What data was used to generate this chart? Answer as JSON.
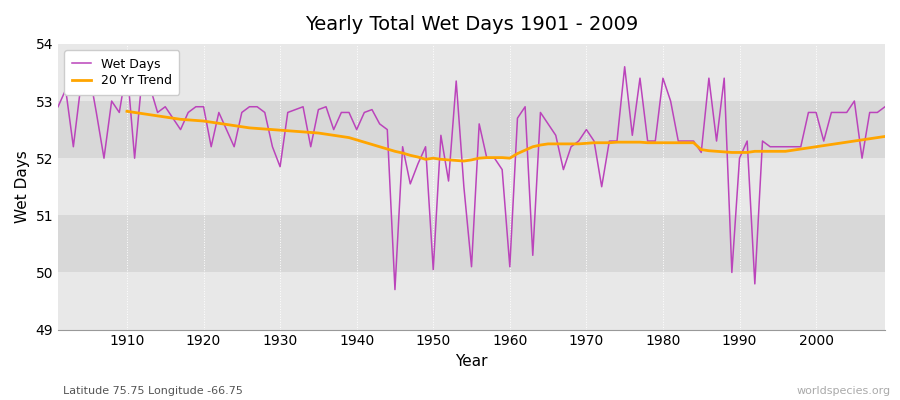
{
  "title": "Yearly Total Wet Days 1901 - 2009",
  "xlabel": "Year",
  "ylabel": "Wet Days",
  "subtitle_left": "Latitude 75.75 Longitude -66.75",
  "subtitle_right": "worldspecies.org",
  "wet_days_color": "#bb44bb",
  "trend_color": "#ffa500",
  "fig_bg_color": "#ffffff",
  "plot_bg_color": "#e8e8e8",
  "band_color_light": "#e8e8e8",
  "band_color_dark": "#d8d8d8",
  "years": [
    1901,
    1902,
    1903,
    1904,
    1905,
    1906,
    1907,
    1908,
    1909,
    1910,
    1911,
    1912,
    1913,
    1914,
    1915,
    1916,
    1917,
    1918,
    1919,
    1920,
    1921,
    1922,
    1923,
    1924,
    1925,
    1926,
    1927,
    1928,
    1929,
    1930,
    1931,
    1932,
    1933,
    1934,
    1935,
    1936,
    1937,
    1938,
    1939,
    1940,
    1941,
    1942,
    1943,
    1944,
    1945,
    1946,
    1947,
    1948,
    1949,
    1950,
    1951,
    1952,
    1953,
    1954,
    1955,
    1956,
    1957,
    1958,
    1959,
    1960,
    1961,
    1962,
    1963,
    1964,
    1965,
    1966,
    1967,
    1968,
    1969,
    1970,
    1971,
    1972,
    1973,
    1974,
    1975,
    1976,
    1977,
    1978,
    1979,
    1980,
    1981,
    1982,
    1983,
    1984,
    1985,
    1986,
    1987,
    1988,
    1989,
    1990,
    1991,
    1992,
    1993,
    1994,
    1995,
    1996,
    1997,
    1998,
    1999,
    2000,
    2001,
    2002,
    2003,
    2004,
    2005,
    2006,
    2007,
    2008,
    2009
  ],
  "wet_days": [
    52.9,
    53.2,
    52.2,
    53.3,
    53.55,
    52.8,
    52.0,
    53.0,
    52.8,
    53.6,
    52.0,
    53.45,
    53.25,
    52.8,
    52.9,
    52.7,
    52.5,
    52.8,
    52.9,
    52.9,
    52.2,
    52.8,
    52.5,
    52.2,
    52.8,
    52.9,
    52.9,
    52.8,
    52.2,
    51.85,
    52.8,
    52.85,
    52.9,
    52.2,
    52.85,
    52.9,
    52.5,
    52.8,
    52.8,
    52.5,
    52.8,
    52.85,
    52.6,
    52.5,
    49.7,
    52.2,
    51.55,
    51.9,
    52.2,
    50.05,
    52.4,
    51.6,
    53.35,
    51.5,
    50.1,
    52.6,
    52.0,
    52.0,
    51.8,
    50.1,
    52.7,
    52.9,
    50.3,
    52.8,
    52.6,
    52.4,
    51.8,
    52.2,
    52.3,
    52.5,
    52.3,
    51.5,
    52.3,
    52.3,
    53.6,
    52.4,
    53.4,
    52.3,
    52.3,
    53.4,
    53.0,
    52.3,
    52.3,
    52.3,
    52.1,
    53.4,
    52.3,
    53.4,
    50.0,
    52.0,
    52.3,
    49.8,
    52.3,
    52.2,
    52.2,
    52.2,
    52.2,
    52.2,
    52.8,
    52.8,
    52.3,
    52.8,
    52.8,
    52.8,
    53.0,
    52.0,
    52.8,
    52.8,
    52.9
  ],
  "trend_years": [
    1910,
    1911,
    1912,
    1913,
    1914,
    1915,
    1916,
    1917,
    1918,
    1919,
    1920,
    1921,
    1922,
    1923,
    1924,
    1925,
    1926,
    1927,
    1928,
    1929,
    1930,
    1931,
    1932,
    1933,
    1934,
    1935,
    1936,
    1937,
    1938,
    1939,
    1940,
    1941,
    1942,
    1943,
    1944,
    1945,
    1946,
    1947,
    1948,
    1949,
    1950,
    1951,
    1952,
    1953,
    1954,
    1955,
    1956,
    1957,
    1958,
    1959,
    1960,
    1961,
    1962,
    1963,
    1964,
    1965,
    1966,
    1967,
    1968,
    1969,
    1970,
    1971,
    1972,
    1973,
    1974,
    1975,
    1976,
    1977,
    1978,
    1979,
    1980,
    1981,
    1982,
    1983,
    1984,
    1985,
    1986,
    1987,
    1988,
    1989,
    1990,
    1991,
    1992,
    1993,
    1994,
    1995,
    1996,
    1997,
    1998,
    1999,
    2000,
    2001,
    2002,
    2003,
    2004,
    2005,
    2006,
    2007,
    2008,
    2009
  ],
  "trend_values": [
    52.82,
    52.8,
    52.78,
    52.76,
    52.74,
    52.72,
    52.7,
    52.68,
    52.67,
    52.66,
    52.65,
    52.63,
    52.61,
    52.59,
    52.57,
    52.55,
    52.53,
    52.52,
    52.51,
    52.5,
    52.49,
    52.48,
    52.47,
    52.46,
    52.45,
    52.44,
    52.42,
    52.4,
    52.38,
    52.36,
    52.32,
    52.28,
    52.24,
    52.2,
    52.16,
    52.12,
    52.09,
    52.05,
    52.02,
    51.98,
    52.0,
    51.98,
    51.97,
    51.96,
    51.95,
    51.97,
    52.0,
    52.01,
    52.01,
    52.01,
    52.0,
    52.08,
    52.14,
    52.2,
    52.23,
    52.25,
    52.25,
    52.25,
    52.25,
    52.25,
    52.26,
    52.27,
    52.27,
    52.27,
    52.28,
    52.28,
    52.28,
    52.28,
    52.27,
    52.27,
    52.27,
    52.27,
    52.27,
    52.27,
    52.27,
    52.15,
    52.13,
    52.12,
    52.11,
    52.1,
    52.1,
    52.1,
    52.12,
    52.12,
    52.12,
    52.12,
    52.12,
    52.14,
    52.16,
    52.18,
    52.2,
    52.22,
    52.24,
    52.26,
    52.28,
    52.3,
    52.32,
    52.34,
    52.36,
    52.38
  ],
  "ylim": [
    49,
    54
  ],
  "yticks": [
    49,
    50,
    51,
    52,
    53,
    54
  ],
  "xlim": [
    1901,
    2009
  ],
  "xticks": [
    1910,
    1920,
    1930,
    1940,
    1950,
    1960,
    1970,
    1980,
    1990,
    2000
  ]
}
